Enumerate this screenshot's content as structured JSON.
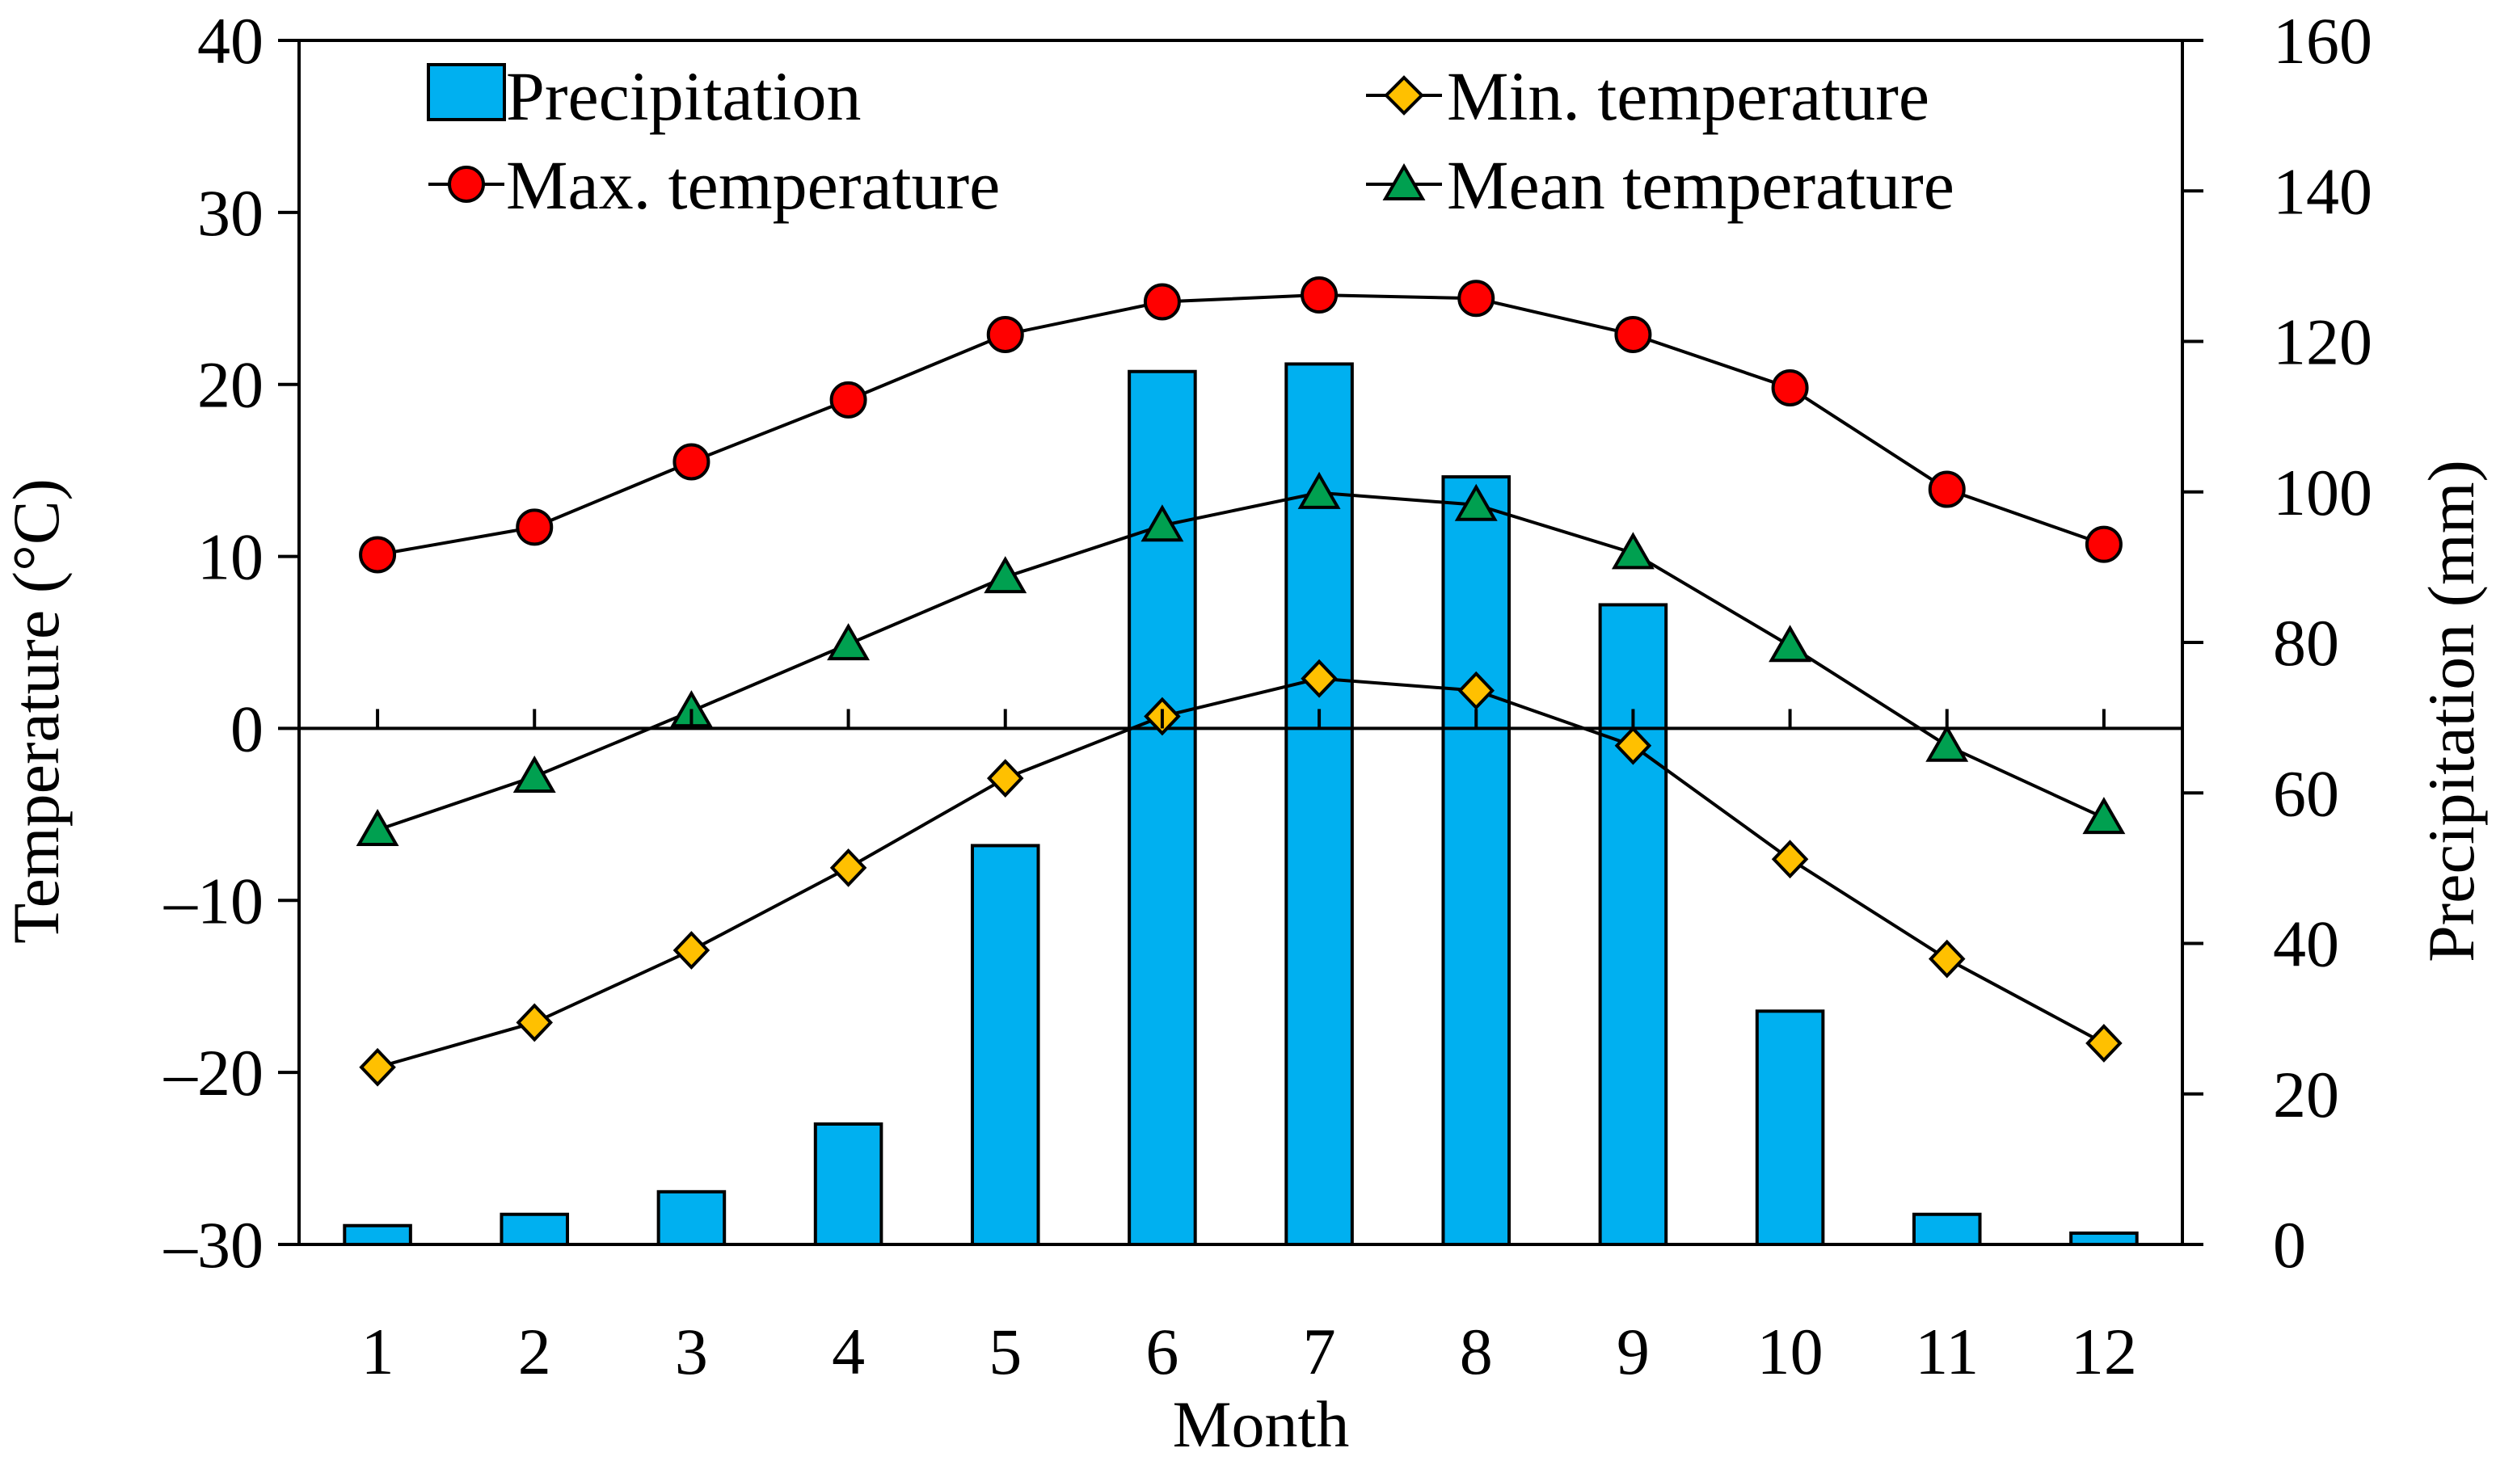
{
  "chart_data": {
    "type": "bar+line",
    "categories": [
      "1",
      "2",
      "3",
      "4",
      "5",
      "6",
      "7",
      "8",
      "9",
      "10",
      "11",
      "12"
    ],
    "bar_series": {
      "name": "Precipitation",
      "axis": "right",
      "values": [
        2.5,
        4,
        7,
        16,
        53,
        116,
        117,
        102,
        85,
        31,
        4,
        1.5
      ],
      "color": "#00b0f0"
    },
    "line_series": [
      {
        "name": "Max. temperature",
        "axis": "left",
        "marker": "circle",
        "color": "#ff0000",
        "values": [
          10.1,
          11.7,
          15.5,
          19.1,
          22.9,
          24.8,
          25.2,
          25.0,
          22.9,
          19.8,
          13.9,
          10.7
        ]
      },
      {
        "name": "Mean temperature",
        "axis": "left",
        "marker": "triangle",
        "color": "#00a050",
        "values": [
          -5.9,
          -2.8,
          1.0,
          4.9,
          8.8,
          11.8,
          13.7,
          13.0,
          10.2,
          4.8,
          -1.0,
          -5.2
        ]
      },
      {
        "name": "Min. temperature",
        "axis": "left",
        "marker": "diamond",
        "color": "#ffc000",
        "values": [
          -19.7,
          -17.1,
          -12.9,
          -8.1,
          -2.9,
          0.7,
          2.9,
          2.2,
          -1.0,
          -7.6,
          -13.4,
          -18.3
        ]
      }
    ],
    "y_left": {
      "label": "Temperature (°C)",
      "range": [
        -30,
        40
      ],
      "ticks": [
        "40",
        "30",
        "20",
        "10",
        "0",
        "–10",
        "–20",
        "–30"
      ]
    },
    "y_right": {
      "label": "Precipitation (mm)",
      "range": [
        0,
        160
      ],
      "ticks": [
        "160",
        "140",
        "120",
        "100",
        "80",
        "60",
        "40",
        "20",
        "0"
      ]
    },
    "x_axis": {
      "label": "Month"
    },
    "legend": {
      "placement": "top",
      "entries": [
        "Precipitation",
        "Min. temperature",
        "Max. temperature",
        "Mean temperature"
      ]
    }
  }
}
